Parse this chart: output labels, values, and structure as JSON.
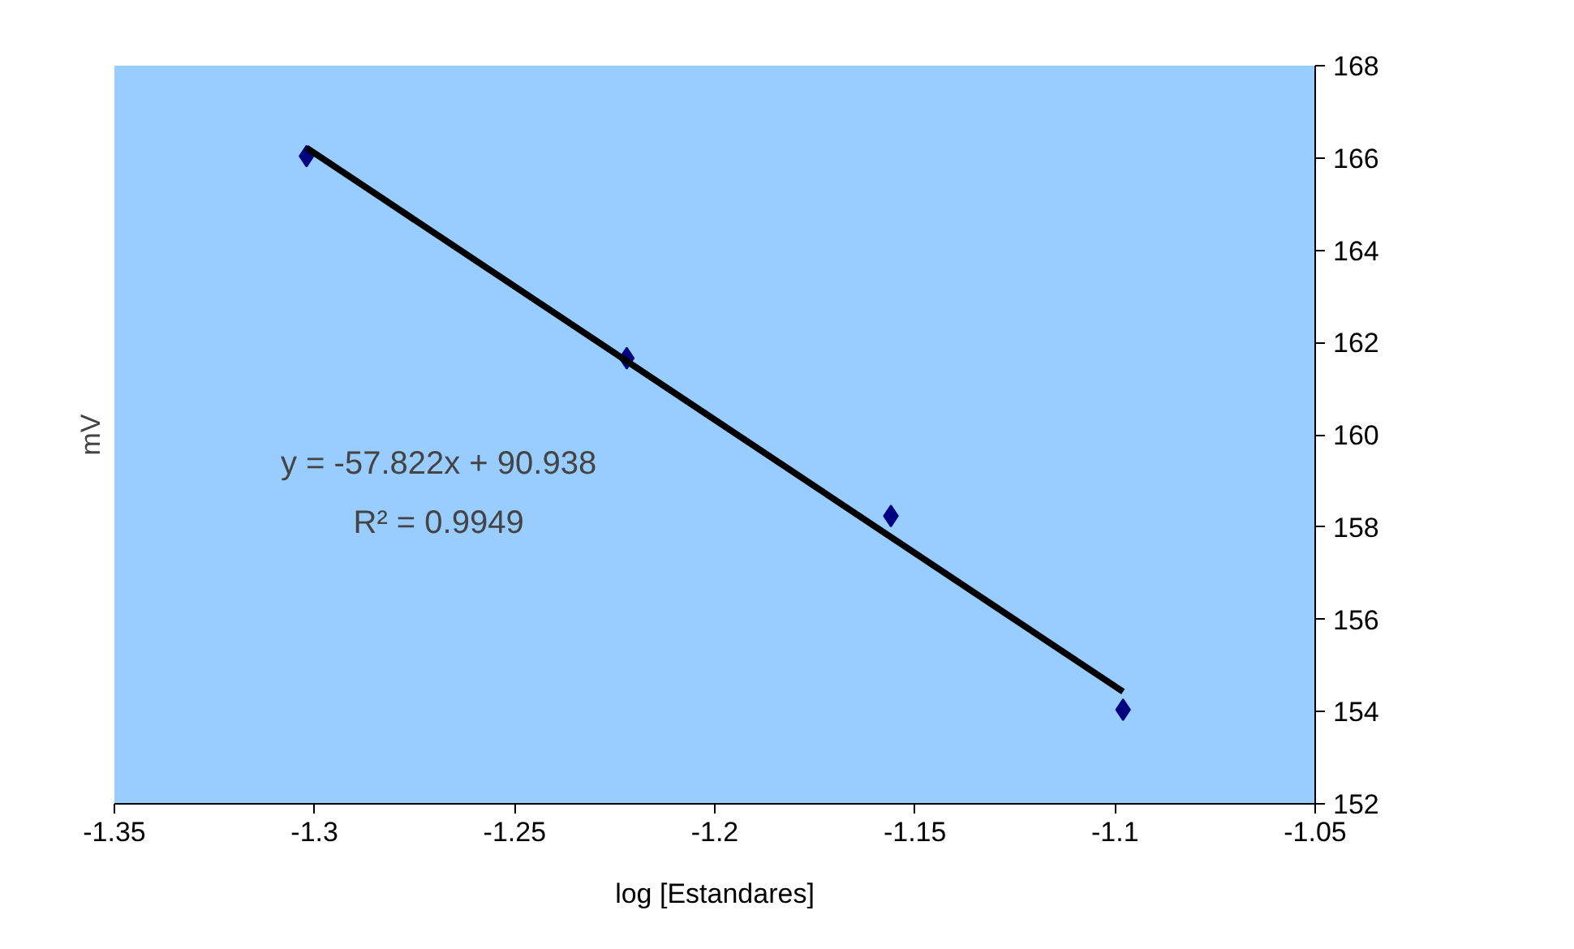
{
  "chart_data": {
    "type": "scatter",
    "xlabel": "log [Estandares]",
    "ylabel": "mV",
    "x": [
      -1.302,
      -1.222,
      -1.156,
      -1.098
    ],
    "series": [
      {
        "color": "#000080",
        "values": [
          166.04,
          161.66,
          158.24,
          154.04
        ]
      },
      {
        "type": "line",
        "marker": "none",
        "color": "#000000",
        "x": [
          -1.302,
          -1.098
        ],
        "values": [
          166.22,
          154.43
        ]
      }
    ],
    "marker": "diamond",
    "annotations": [
      "y = -57.822x + 90.938",
      "R² = 0.9949"
    ],
    "xlim": [
      -1.35,
      -1.05
    ],
    "xticks": [
      -1.35,
      -1.3,
      -1.25,
      -1.2,
      -1.15,
      -1.1,
      -1.05
    ],
    "ylim": [
      152,
      168
    ],
    "yticks": [
      152,
      154,
      156,
      158,
      160,
      162,
      164,
      166,
      168
    ],
    "grid": false
  }
}
